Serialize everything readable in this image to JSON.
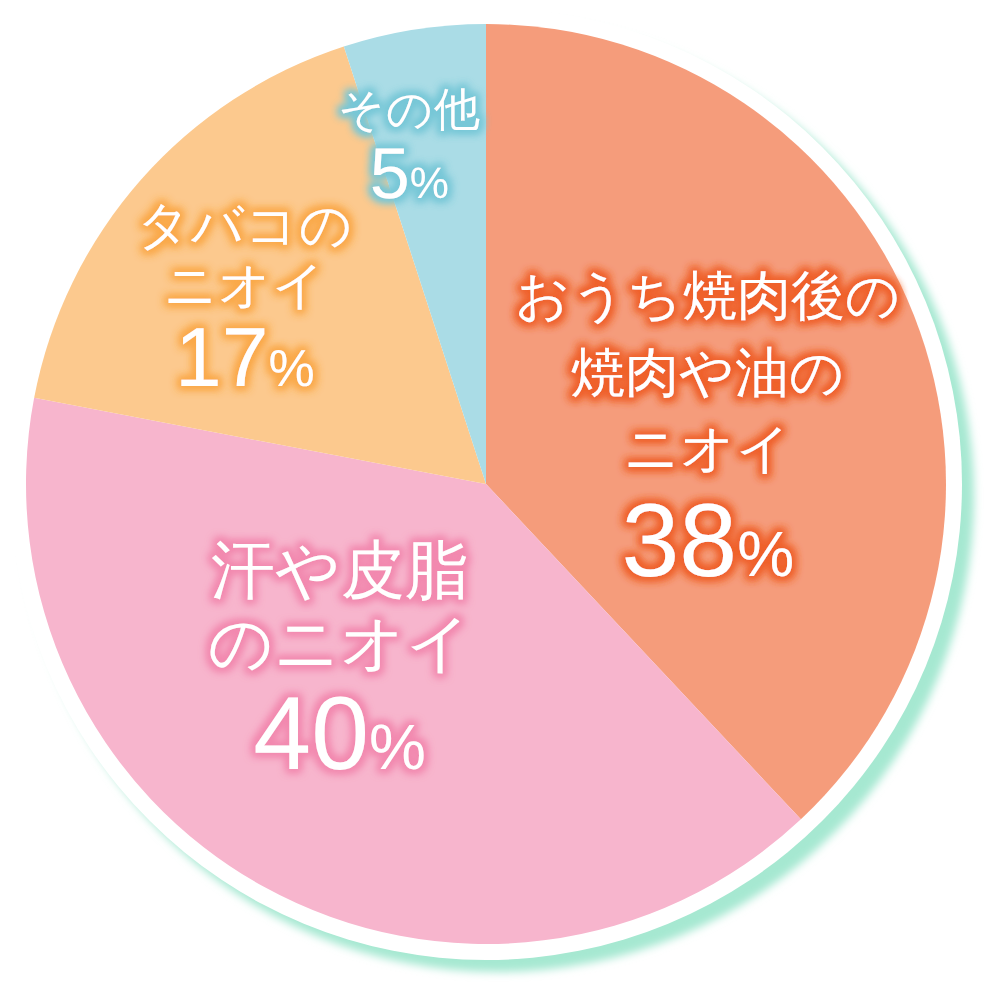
{
  "chart_data": {
    "type": "pie",
    "categories": [
      "おうち焼肉後の焼肉や油のニオイ",
      "汗や皮脂のニオイ",
      "タバコのニオイ",
      "その他"
    ],
    "values": [
      38,
      40,
      17,
      5
    ],
    "colors": [
      "#f59c7b",
      "#f7b5cd",
      "#fcc98e",
      "#aadce6"
    ],
    "value_labels": [
      "38%",
      "40%",
      "17%",
      "5%"
    ]
  }
}
